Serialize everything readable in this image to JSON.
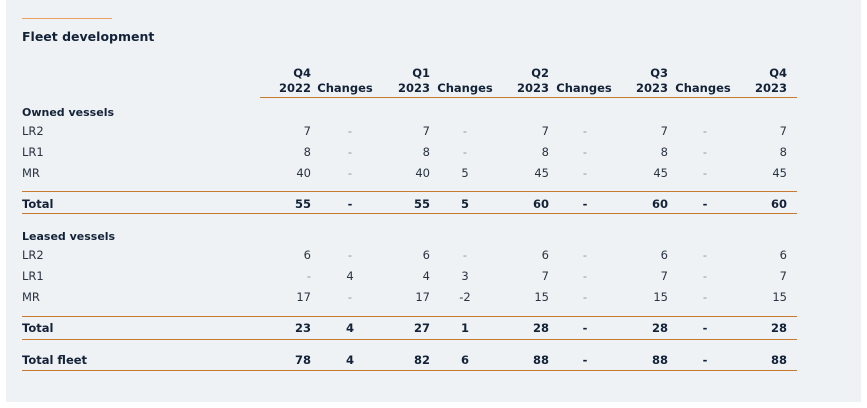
{
  "title": "Fleet development",
  "headers": [
    {
      "top": "Q4",
      "bottom": "2022"
    },
    {
      "top": "",
      "bottom": "Changes"
    },
    {
      "top": "Q1",
      "bottom": "2023"
    },
    {
      "top": "",
      "bottom": "Changes"
    },
    {
      "top": "Q2",
      "bottom": "2023"
    },
    {
      "top": "",
      "bottom": "Changes"
    },
    {
      "top": "Q3",
      "bottom": "2023"
    },
    {
      "top": "",
      "bottom": "Changes"
    },
    {
      "top": "Q4",
      "bottom": "2023"
    }
  ],
  "owned": {
    "label": "Owned vessels",
    "rows": [
      {
        "label": "LR2",
        "values": [
          "7",
          "-",
          "7",
          "-",
          "7",
          "-",
          "7",
          "-",
          "7"
        ]
      },
      {
        "label": "LR1",
        "values": [
          "8",
          "-",
          "8",
          "-",
          "8",
          "-",
          "8",
          "-",
          "8"
        ]
      },
      {
        "label": "MR",
        "values": [
          "40",
          "-",
          "40",
          "5",
          "45",
          "-",
          "45",
          "-",
          "45"
        ]
      }
    ],
    "total": {
      "label": "Total",
      "values": [
        "55",
        "-",
        "55",
        "5",
        "60",
        "-",
        "60",
        "-",
        "60"
      ]
    }
  },
  "leased": {
    "label": "Leased vessels",
    "rows": [
      {
        "label": "LR2",
        "values": [
          "6",
          "-",
          "6",
          "-",
          "6",
          "-",
          "6",
          "-",
          "6"
        ]
      },
      {
        "label": "LR1",
        "values": [
          "-",
          "4",
          "4",
          "3",
          "7",
          "-",
          "7",
          "-",
          "7"
        ]
      },
      {
        "label": "MR",
        "values": [
          "17",
          "-",
          "17",
          "-2",
          "15",
          "-",
          "15",
          "-",
          "15"
        ]
      }
    ],
    "total": {
      "label": "Total",
      "values": [
        "23",
        "4",
        "27",
        "1",
        "28",
        "-",
        "28",
        "-",
        "28"
      ]
    }
  },
  "fleet_total": {
    "label": "Total fleet",
    "values": [
      "78",
      "4",
      "82",
      "6",
      "88",
      "-",
      "88",
      "-",
      "88"
    ]
  }
}
